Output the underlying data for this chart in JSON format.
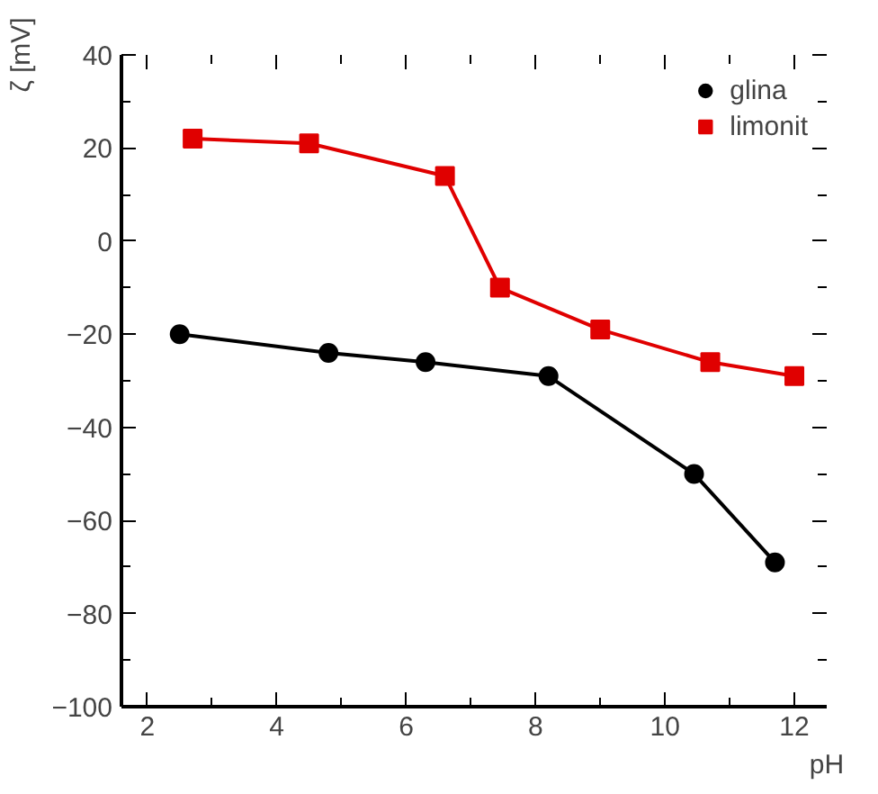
{
  "chart_data": {
    "type": "line",
    "xlabel": "pH",
    "ylabel": "ζ [mV]",
    "xlim": [
      1.6,
      12.5
    ],
    "ylim": [
      -100,
      40
    ],
    "xticks": [
      2,
      4,
      6,
      8,
      10,
      12
    ],
    "yticks": [
      -100,
      -80,
      -60,
      -40,
      -20,
      0,
      20,
      40
    ],
    "grid": false,
    "legend": "top right",
    "series": [
      {
        "name": "glina",
        "color": "#000000",
        "marker": "circle",
        "x": [
          2.5,
          4.8,
          6.3,
          8.2,
          10.45,
          11.7
        ],
        "values": [
          -20,
          -24,
          -26,
          -29,
          -50,
          -69
        ]
      },
      {
        "name": "limonit",
        "color": "#e00000",
        "marker": "square",
        "x": [
          2.7,
          4.5,
          6.6,
          7.45,
          9.0,
          10.7,
          12.0
        ],
        "values": [
          22,
          21,
          14,
          -10,
          -19,
          -26,
          -29
        ]
      }
    ]
  }
}
